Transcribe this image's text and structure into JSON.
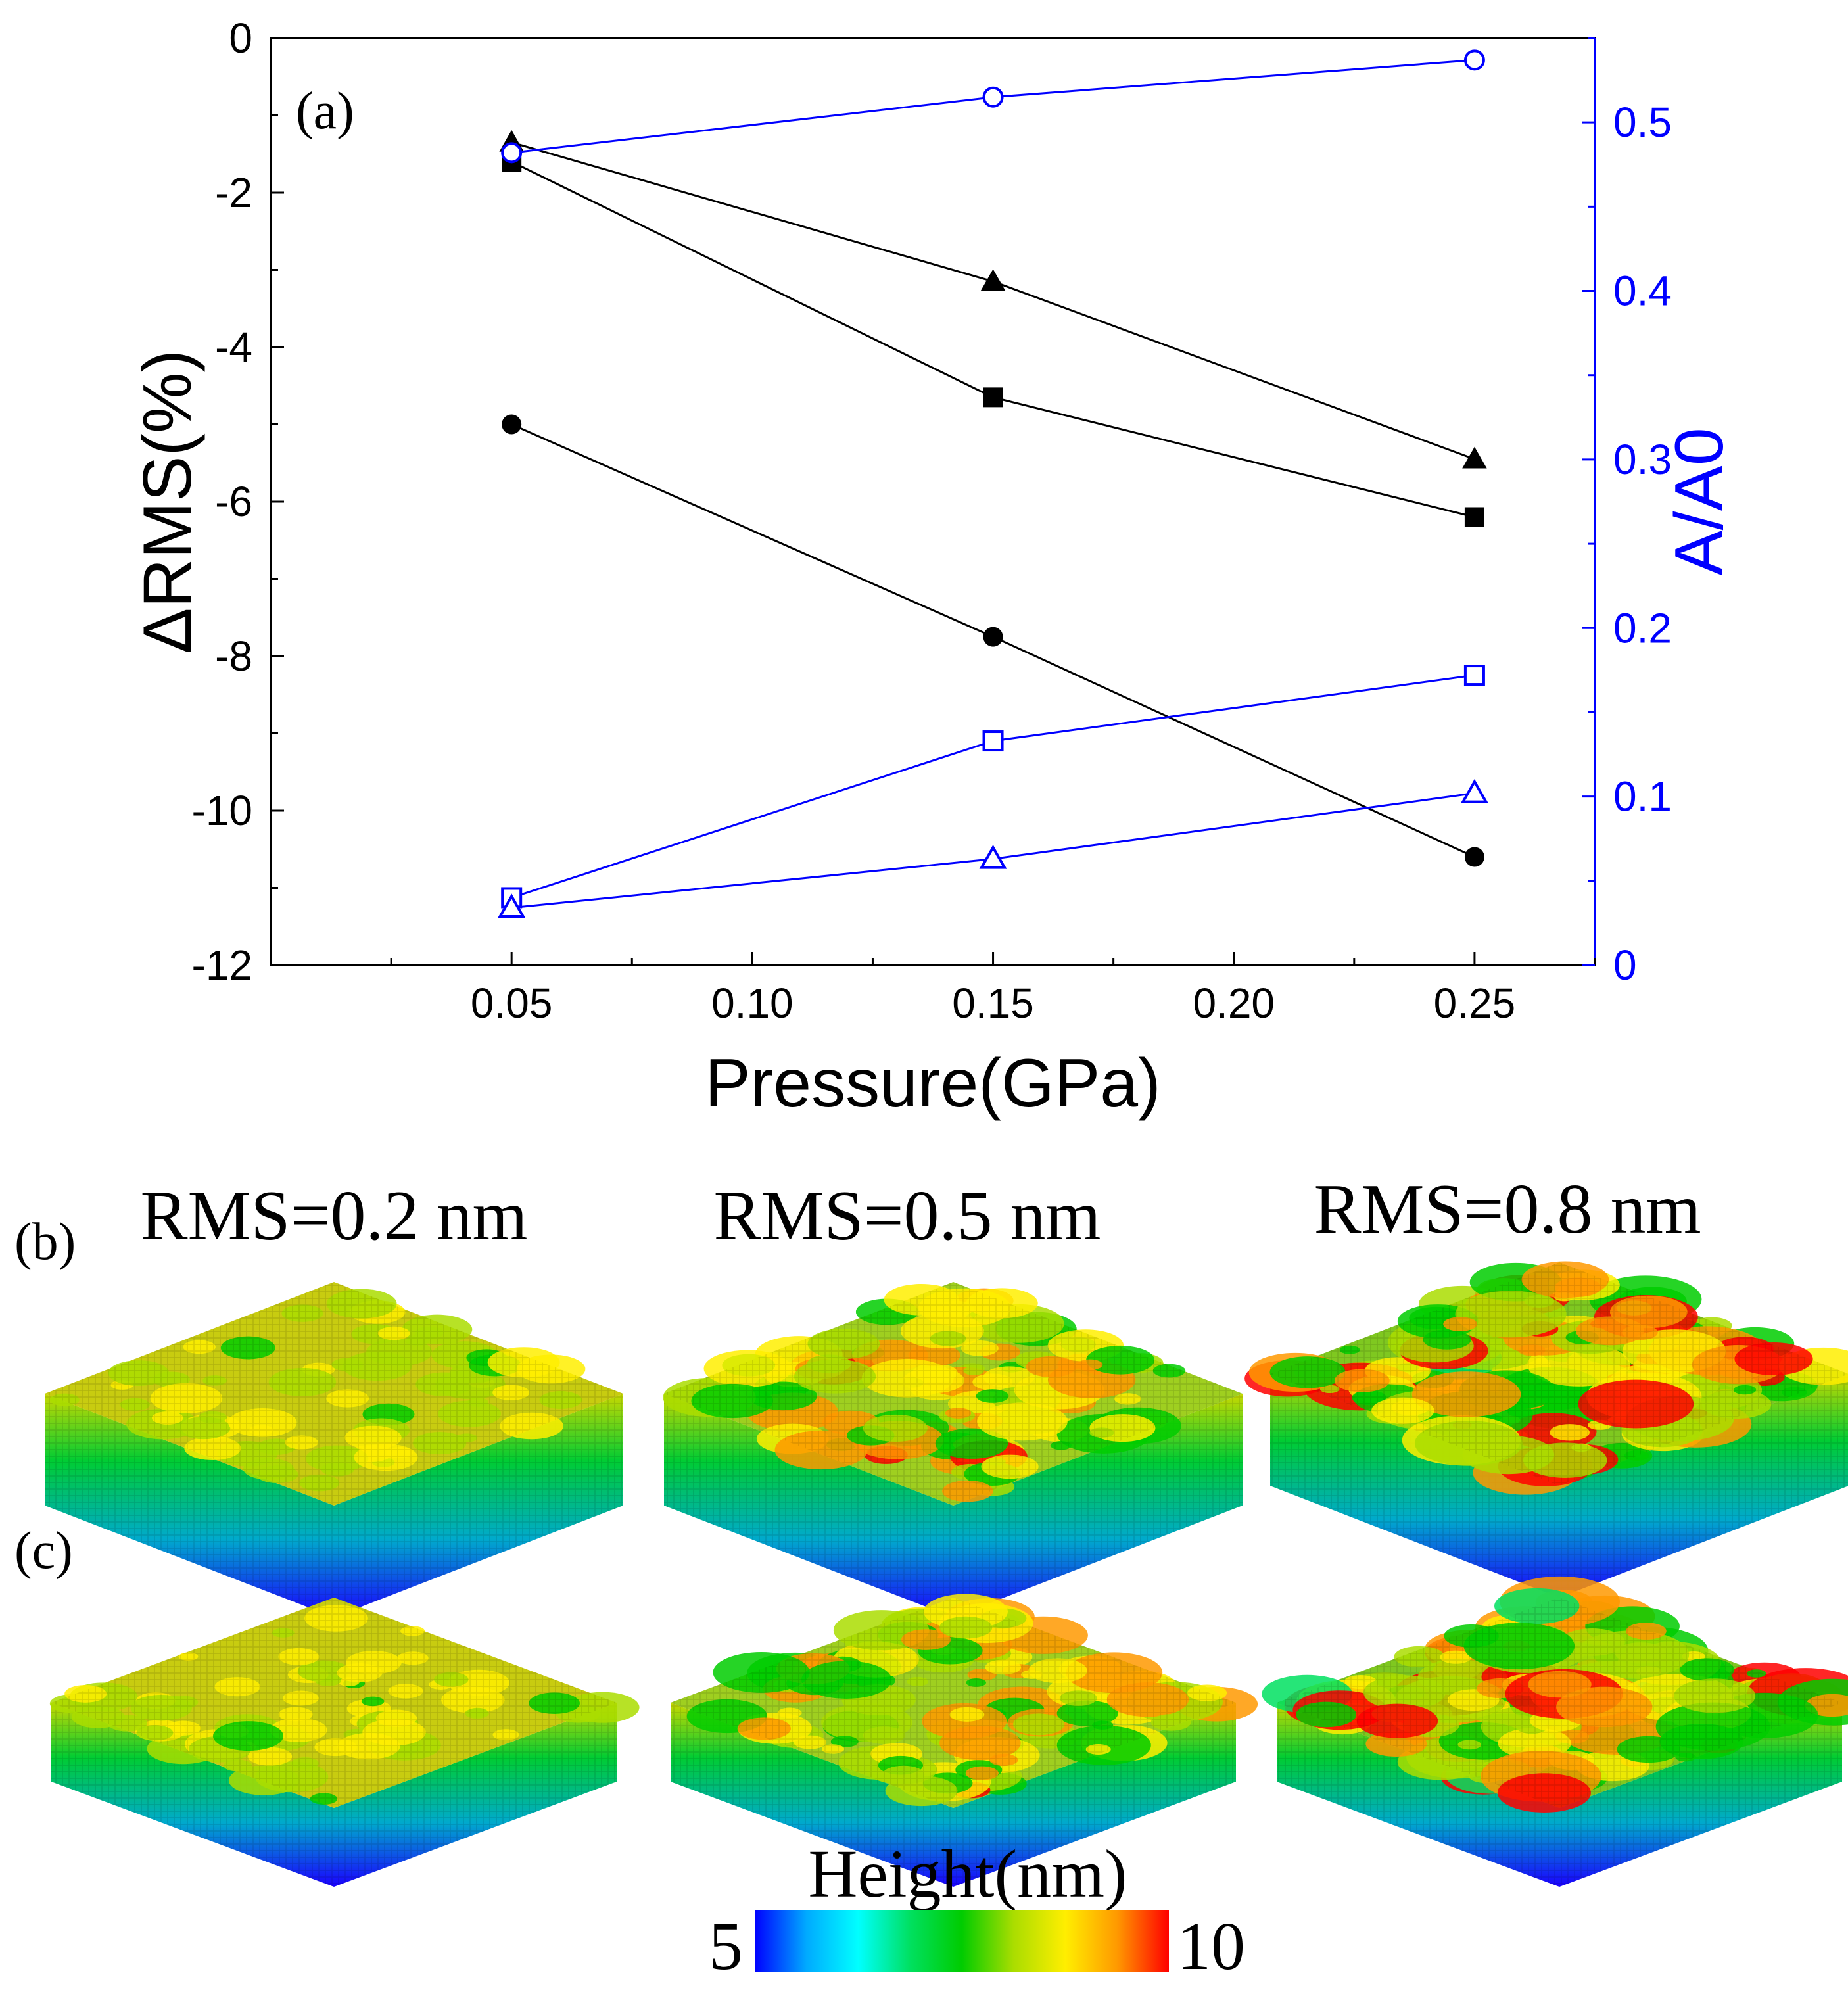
{
  "panel_a_label": "(a)",
  "panel_b_label": "(b)",
  "panel_c_label": "(c)",
  "rms_titles": [
    "RMS=0.2 nm",
    "RMS=0.5 nm",
    "RMS=0.8 nm"
  ],
  "colorbar": {
    "title": "Height(nm)",
    "min_label": "5",
    "max_label": "10",
    "colors": [
      "#0000ff",
      "#00aaff",
      "#00ffff",
      "#00e060",
      "#00cc00",
      "#aadd00",
      "#ffee00",
      "#ff9900",
      "#ff0000"
    ]
  },
  "surfaces": [
    {
      "row": "b",
      "roughness": 0.2
    },
    {
      "row": "b",
      "roughness": 0.5
    },
    {
      "row": "b",
      "roughness": 0.8
    },
    {
      "row": "c",
      "roughness": 0.2
    },
    {
      "row": "c",
      "roughness": 0.5
    },
    {
      "row": "c",
      "roughness": 0.8
    }
  ],
  "colors": {
    "left_axis": "#000000",
    "right_axis": "#0000ff"
  },
  "chart_data": {
    "type": "line",
    "title": "",
    "xlabel": "Pressure(GPa)",
    "ylabel_left": "ΔRMS(%)",
    "ylabel_right": "A/A0",
    "xlim": [
      0.0,
      0.275
    ],
    "ylim_left": [
      -12,
      0
    ],
    "ylim_right": [
      0,
      0.55
    ],
    "x_ticks": [
      "0.05",
      "0.10",
      "0.15",
      "0.20",
      "0.25"
    ],
    "y_left_ticks": [
      "0",
      "-2",
      "-4",
      "-6",
      "-8",
      "-10",
      "-12"
    ],
    "y_right_ticks": [
      "0",
      "0.1",
      "0.2",
      "0.3",
      "0.4",
      "0.5"
    ],
    "x": [
      0.05,
      0.15,
      0.25
    ],
    "series": [
      {
        "name": "ΔRMS filled triangle",
        "axis": "left",
        "marker": "triangle",
        "filled": true,
        "values": [
          -1.35,
          -3.15,
          -5.45
        ]
      },
      {
        "name": "ΔRMS filled square",
        "axis": "left",
        "marker": "square",
        "filled": true,
        "values": [
          -1.6,
          -4.65,
          -6.2
        ]
      },
      {
        "name": "ΔRMS filled circle",
        "axis": "left",
        "marker": "circle",
        "filled": true,
        "values": [
          -5.0,
          -7.75,
          -10.6
        ]
      },
      {
        "name": "A/A0 open circle",
        "axis": "right",
        "marker": "circle",
        "filled": false,
        "values": [
          0.482,
          0.515,
          0.537
        ]
      },
      {
        "name": "A/A0 open square",
        "axis": "right",
        "marker": "square",
        "filled": false,
        "values": [
          0.04,
          0.133,
          0.172
        ]
      },
      {
        "name": "A/A0 open triangle",
        "axis": "right",
        "marker": "triangle",
        "filled": false,
        "values": [
          0.034,
          0.063,
          0.102
        ]
      }
    ]
  }
}
